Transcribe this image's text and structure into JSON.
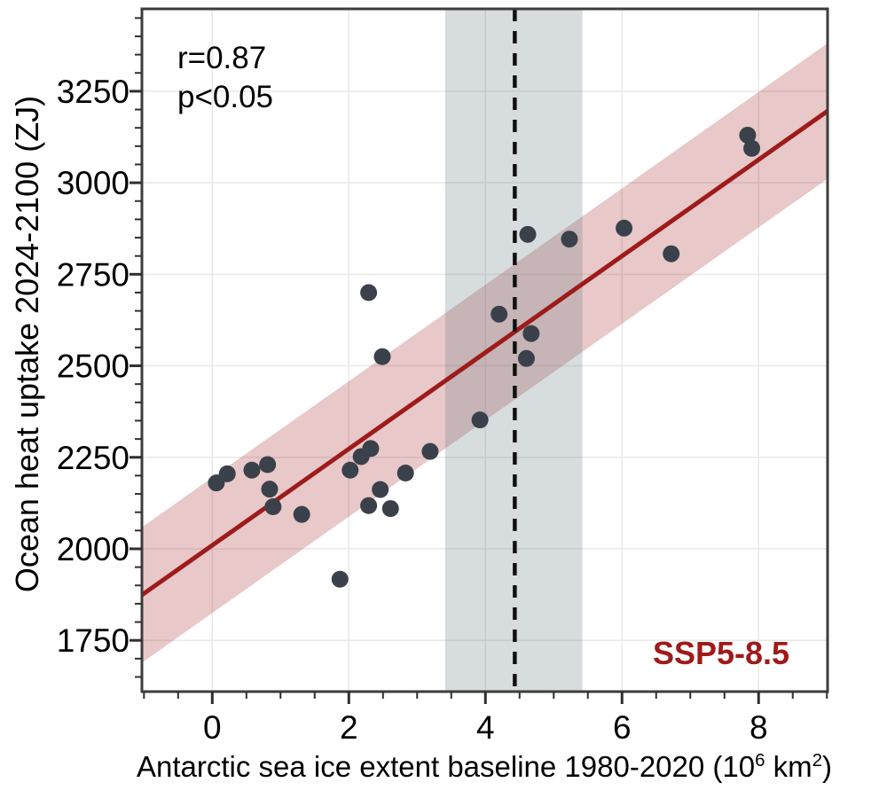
{
  "colors": {
    "point": "#3a414b",
    "regression_line": "#9e1b1b",
    "regression_band": "rgba(158,27,27,0.24)",
    "obs_band": "rgba(112,128,138,0.28)",
    "obs_mean_line": "#111111",
    "scenario_label": "#9e1b1b",
    "frame": "#3d3d3d",
    "grid": "#e8e8e8",
    "tick": "#2f2f2f"
  },
  "chart_data": {
    "type": "scatter",
    "ylabel": "Ocean heat uptake 2024-2100 (ZJ)",
    "xlabel_parts": [
      {
        "text": "Antarctic sea ice extent baseline 1980-2020 (10"
      },
      {
        "sup": "6"
      },
      {
        "text": " km"
      },
      {
        "sup": "2"
      },
      {
        "text": ")"
      }
    ],
    "xlim": [
      -1.03,
      9.01
    ],
    "ylim": [
      1610,
      3475
    ],
    "x_ticks": [
      0,
      2,
      4,
      6,
      8
    ],
    "y_ticks": [
      1750,
      2000,
      2250,
      2500,
      2750,
      3000,
      3250
    ],
    "x_minor_step": 0.5,
    "y_minor_step": 50,
    "grid": true,
    "points": [
      [
        0.06,
        2180
      ],
      [
        0.22,
        2205
      ],
      [
        0.58,
        2215
      ],
      [
        0.81,
        2230
      ],
      [
        0.84,
        2163
      ],
      [
        0.89,
        2115
      ],
      [
        1.31,
        2094
      ],
      [
        1.87,
        1917
      ],
      [
        2.02,
        2215
      ],
      [
        2.18,
        2252
      ],
      [
        2.32,
        2274
      ],
      [
        2.29,
        2700
      ],
      [
        2.49,
        2525
      ],
      [
        2.29,
        2118
      ],
      [
        2.46,
        2162
      ],
      [
        2.61,
        2110
      ],
      [
        2.83,
        2207
      ],
      [
        3.19,
        2266
      ],
      [
        3.92,
        2352
      ],
      [
        4.2,
        2641
      ],
      [
        4.62,
        2859
      ],
      [
        4.6,
        2520
      ],
      [
        4.67,
        2588
      ],
      [
        5.23,
        2846
      ],
      [
        6.03,
        2876
      ],
      [
        6.72,
        2806
      ],
      [
        7.84,
        3130
      ],
      [
        7.9,
        3094
      ]
    ],
    "regression_line": {
      "x_start": -1.03,
      "y_start": 1874,
      "x_end": 9.01,
      "y_end": 3196,
      "band_halfwidth": 185
    },
    "observed_band": {
      "x_min": 3.41,
      "x_max": 5.42,
      "mean_line_x": 4.43
    },
    "annotation": {
      "r_label": "r=0.87",
      "p_label": "p<0.05"
    },
    "scenario": "SSP5-8.5"
  }
}
